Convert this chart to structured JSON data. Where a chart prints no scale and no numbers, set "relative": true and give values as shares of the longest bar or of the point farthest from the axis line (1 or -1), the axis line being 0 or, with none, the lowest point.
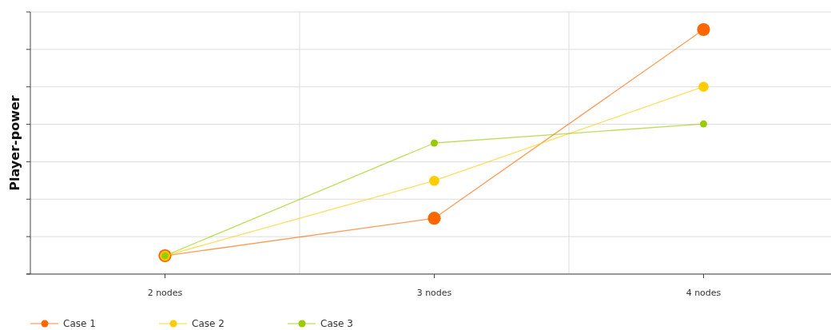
{
  "chart_data": {
    "type": "line",
    "ylabel": "Player-power",
    "categories": [
      "2 nodes",
      "3 nodes",
      "4 nodes"
    ],
    "relative": true,
    "grid": true,
    "legend": "bottom left",
    "marker": "circle",
    "line_style": "solid",
    "series": [
      {
        "name": "Case 1",
        "color": "#ff6600",
        "values": [
          0.077,
          0.23,
          1
        ]
      },
      {
        "name": "Case 2",
        "color": "#ffcc00",
        "values": [
          0.077,
          0.383,
          0.767
        ]
      },
      {
        "name": "Case 3",
        "color": "#99cc00",
        "values": [
          0.077,
          0.537,
          0.615
        ]
      }
    ]
  }
}
